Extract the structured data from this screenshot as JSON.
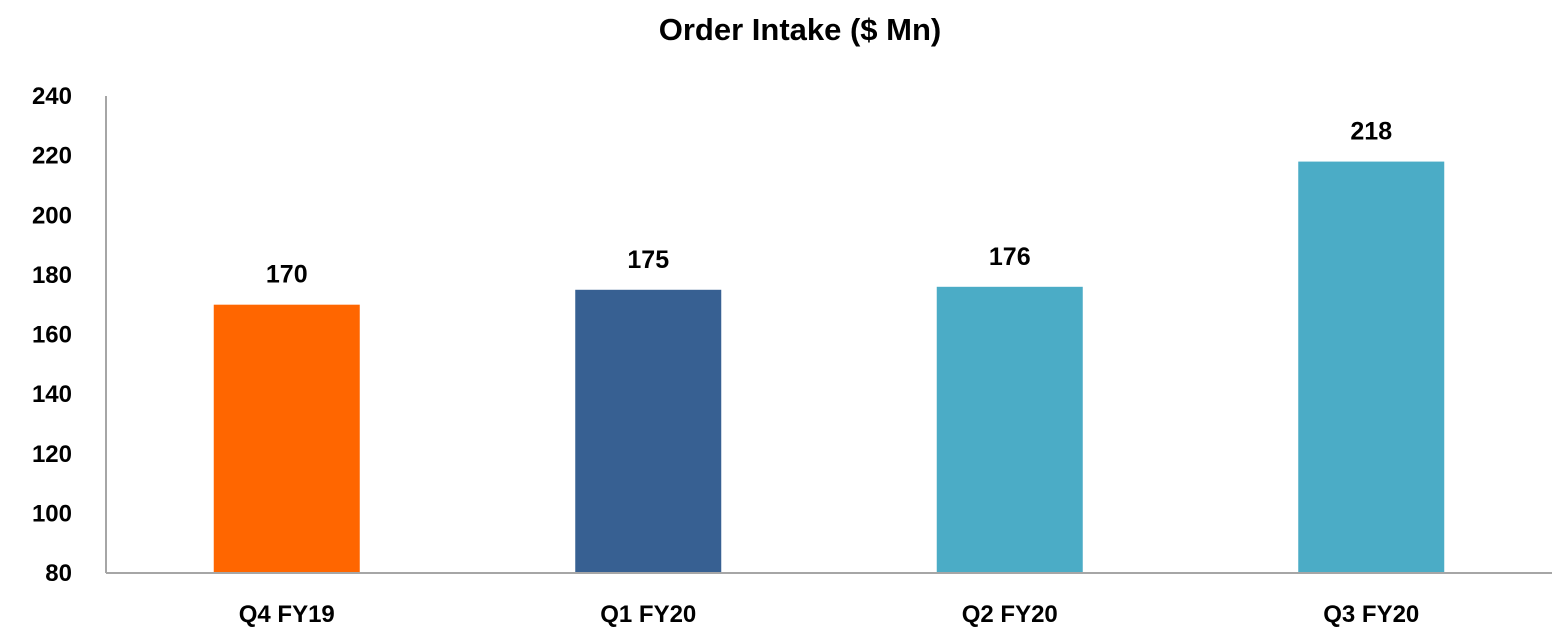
{
  "chart_data": {
    "type": "bar",
    "title": "Order Intake ($ Mn)",
    "xlabel": "",
    "ylabel": "",
    "categories": [
      "Q4 FY19",
      "Q1 FY20",
      "Q2 FY20",
      "Q3 FY20"
    ],
    "values": [
      170,
      175,
      176,
      218
    ],
    "data_labels": [
      "170",
      "175",
      "176",
      "218"
    ],
    "bar_colors": [
      "#FF6600",
      "#376092",
      "#4BACC6",
      "#4BACC6"
    ],
    "ylim": [
      80,
      240
    ],
    "yticks": [
      80,
      100,
      120,
      140,
      160,
      180,
      200,
      220,
      240
    ],
    "ytick_labels": [
      "80",
      "100",
      "120",
      "140",
      "160",
      "180",
      "200",
      "220",
      "240"
    ],
    "grid": false,
    "legend": "none",
    "axis_color": "#A6A6A6"
  }
}
